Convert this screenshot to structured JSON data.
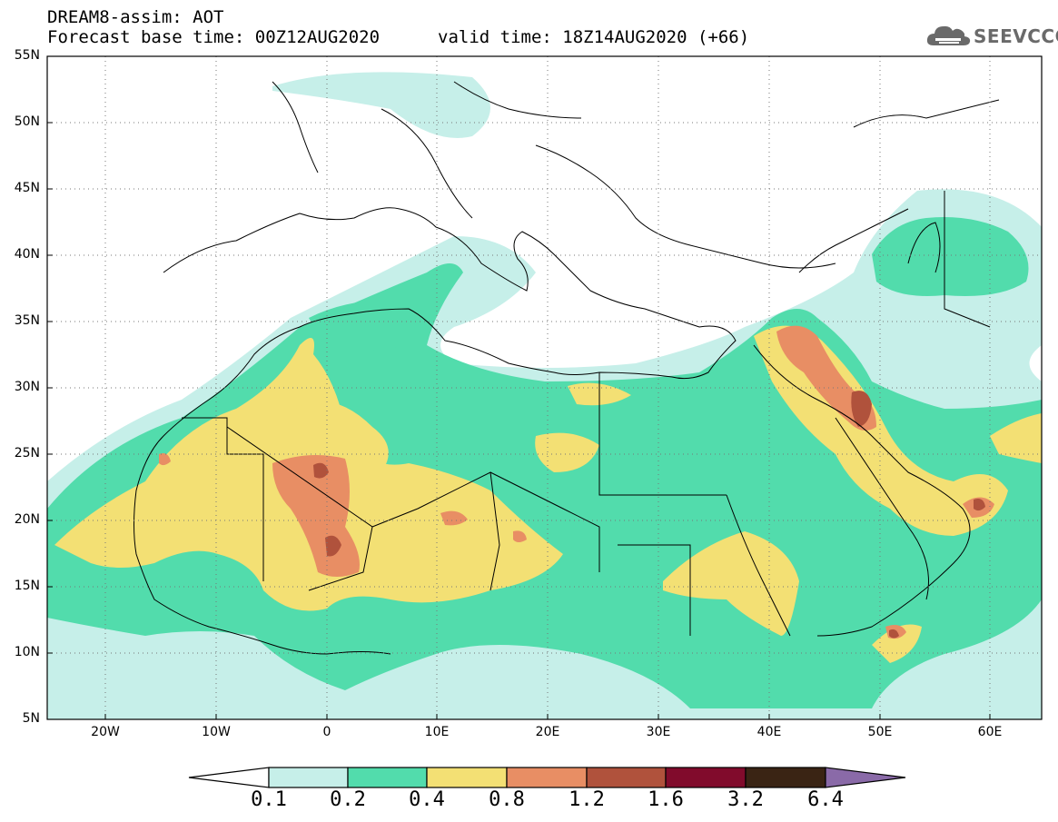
{
  "header": {
    "title": "DREAM8-assim: AOT",
    "base_time": "Forecast base time: 00Z12AUG2020",
    "valid_time": "valid time: 18Z14AUG2020 (+66)"
  },
  "logo": {
    "text": "SEEVCCC",
    "icon": "cloud-icon"
  },
  "map": {
    "lat_labels": [
      "55N",
      "50N",
      "45N",
      "40N",
      "35N",
      "30N",
      "25N",
      "20N",
      "15N",
      "10N",
      "5N"
    ],
    "lon_labels": [
      "20W",
      "10W",
      "0",
      "10E",
      "20E",
      "30E",
      "40E",
      "50E",
      "60E"
    ],
    "lon_range": [
      -25,
      65
    ],
    "lat_range": [
      5,
      55
    ]
  },
  "colorbar": {
    "labels": [
      "0.1",
      "0.2",
      "0.4",
      "0.8",
      "1.2",
      "1.6",
      "3.2",
      "6.4"
    ],
    "colors": [
      "#ffffff",
      "#c6efe9",
      "#52dcac",
      "#f3e074",
      "#e88e64",
      "#b0523c",
      "#810b2c",
      "#3a2414",
      "#8a6aa8"
    ]
  }
}
